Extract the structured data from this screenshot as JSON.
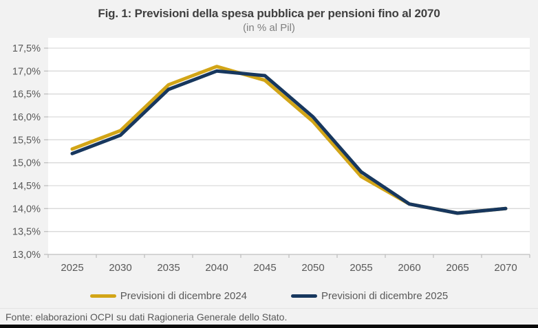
{
  "title": "Fig. 1: Previsioni della spesa pubblica per pensioni fino al 2070",
  "subtitle": "(in % al Pil)",
  "footer": "Fonte: elaborazioni OCPI su dati Ragioneria Generale dello Stato.",
  "colors": {
    "series_2024": "#D2A517",
    "series_2025": "#17375E",
    "grid": "#D9D9D9",
    "axis": "#BFBFBF",
    "background": "#F2F2F2",
    "plot_background": "#FFFFFF",
    "title_text": "#404040",
    "subtitle_text": "#7F7F7F",
    "axis_text": "#595959",
    "legend_text": "#595959",
    "footer_text": "#595959",
    "bottom_bar": "#0A0A0A"
  },
  "chart_data": {
    "type": "line",
    "categories": [
      "2025",
      "2030",
      "2035",
      "2040",
      "2045",
      "2050",
      "2055",
      "2060",
      "2065",
      "2070"
    ],
    "series": [
      {
        "name": "Previsioni di dicembre 2024",
        "color_key": "series_2024",
        "values": [
          15.3,
          15.7,
          16.7,
          17.1,
          16.8,
          15.9,
          14.7,
          14.1,
          13.9,
          14.0
        ]
      },
      {
        "name": "Previsioni di dicembre 2025",
        "color_key": "series_2025",
        "values": [
          15.2,
          15.6,
          16.6,
          17.0,
          16.9,
          16.0,
          14.8,
          14.1,
          13.9,
          14.0
        ]
      }
    ],
    "title": "Fig. 1: Previsioni della spesa pubblica per pensioni fino al 2070",
    "subtitle": "(in % al Pil)",
    "xlabel": "",
    "ylabel": "",
    "ylim": [
      13.0,
      17.5
    ],
    "y_tick_step": 0.5,
    "y_tick_labels_top_down": [
      "17,5%",
      "17,0%",
      "16,5%",
      "16,0%",
      "15,5%",
      "15,0%",
      "14,5%",
      "14,0%",
      "13,5%",
      "13,0%"
    ],
    "grid": "horizontal",
    "legend_position": "bottom"
  },
  "legend": {
    "items": [
      {
        "label": "Previsioni di dicembre 2024",
        "color_key": "series_2024"
      },
      {
        "label": "Previsioni di dicembre 2025",
        "color_key": "series_2025"
      }
    ]
  }
}
